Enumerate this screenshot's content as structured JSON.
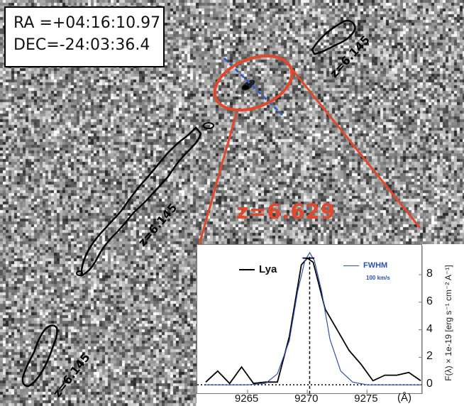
{
  "coordinates": {
    "ra": "RA =+04:16:10.97",
    "dec": "DEC=-24:03:36.4"
  },
  "highlight": {
    "redshift_label": "z=6.629",
    "accent_color": "#e0492c"
  },
  "neighbor_labels": [
    "z=6.145",
    "z=6.145",
    "z=6.145"
  ],
  "spectrum": {
    "legend_lya": "Lya",
    "legend_fwhm": "FWHM",
    "legend_fwhm_value": "100 km/s",
    "ylabel": "F(λ) × 1e-19 [erg s⁻¹ cm⁻² A⁻¹]",
    "x_unit": "(Å)",
    "xticks": [
      "9265",
      "9270",
      "9275"
    ],
    "yticks": [
      "0",
      "2",
      "4",
      "6",
      "8"
    ],
    "line_color_observed": "#000000",
    "line_color_model": "#2f4fb0"
  },
  "chart_data": {
    "type": "line",
    "xlabel": "(Å)",
    "ylabel": "F(λ) × 1e-19 [erg s⁻¹ cm⁻² A⁻¹]",
    "xlim": [
      9261.5,
      9279.5
    ],
    "ylim": [
      -0.3,
      9.8
    ],
    "x_ticks": [
      9265,
      9270,
      9275
    ],
    "y_ticks": [
      0,
      2,
      4,
      6,
      8
    ],
    "peak_marker_x": 9270.2,
    "series": [
      {
        "name": "Lya",
        "x": [
          9261.5,
          9262.5,
          9263.5,
          9264.5,
          9265.5,
          9266.5,
          9267.5,
          9268.5,
          9269.5,
          9270.0,
          9270.5,
          9271.5,
          9272.5,
          9273.5,
          9274.5,
          9275.5,
          9276.5,
          9277.5,
          9278.5,
          9279.5
        ],
        "y": [
          0.2,
          1.0,
          0.1,
          1.3,
          0.1,
          0.2,
          0.2,
          3.5,
          8.7,
          9.2,
          8.9,
          5.5,
          4.0,
          2.5,
          1.5,
          0.3,
          0.7,
          0.7,
          0.9,
          0.3
        ]
      },
      {
        "name": "FWHM",
        "x": [
          9261.5,
          9265.0,
          9266.5,
          9267.5,
          9268.5,
          9269.2,
          9269.8,
          9270.2,
          9270.6,
          9271.2,
          9271.9,
          9272.8,
          9273.8,
          9275.0,
          9279.5
        ],
        "y": [
          0.0,
          0.0,
          0.1,
          0.8,
          3.2,
          6.8,
          9.0,
          9.6,
          9.0,
          6.8,
          3.3,
          1.0,
          0.2,
          0.0,
          0.0
        ]
      }
    ]
  }
}
